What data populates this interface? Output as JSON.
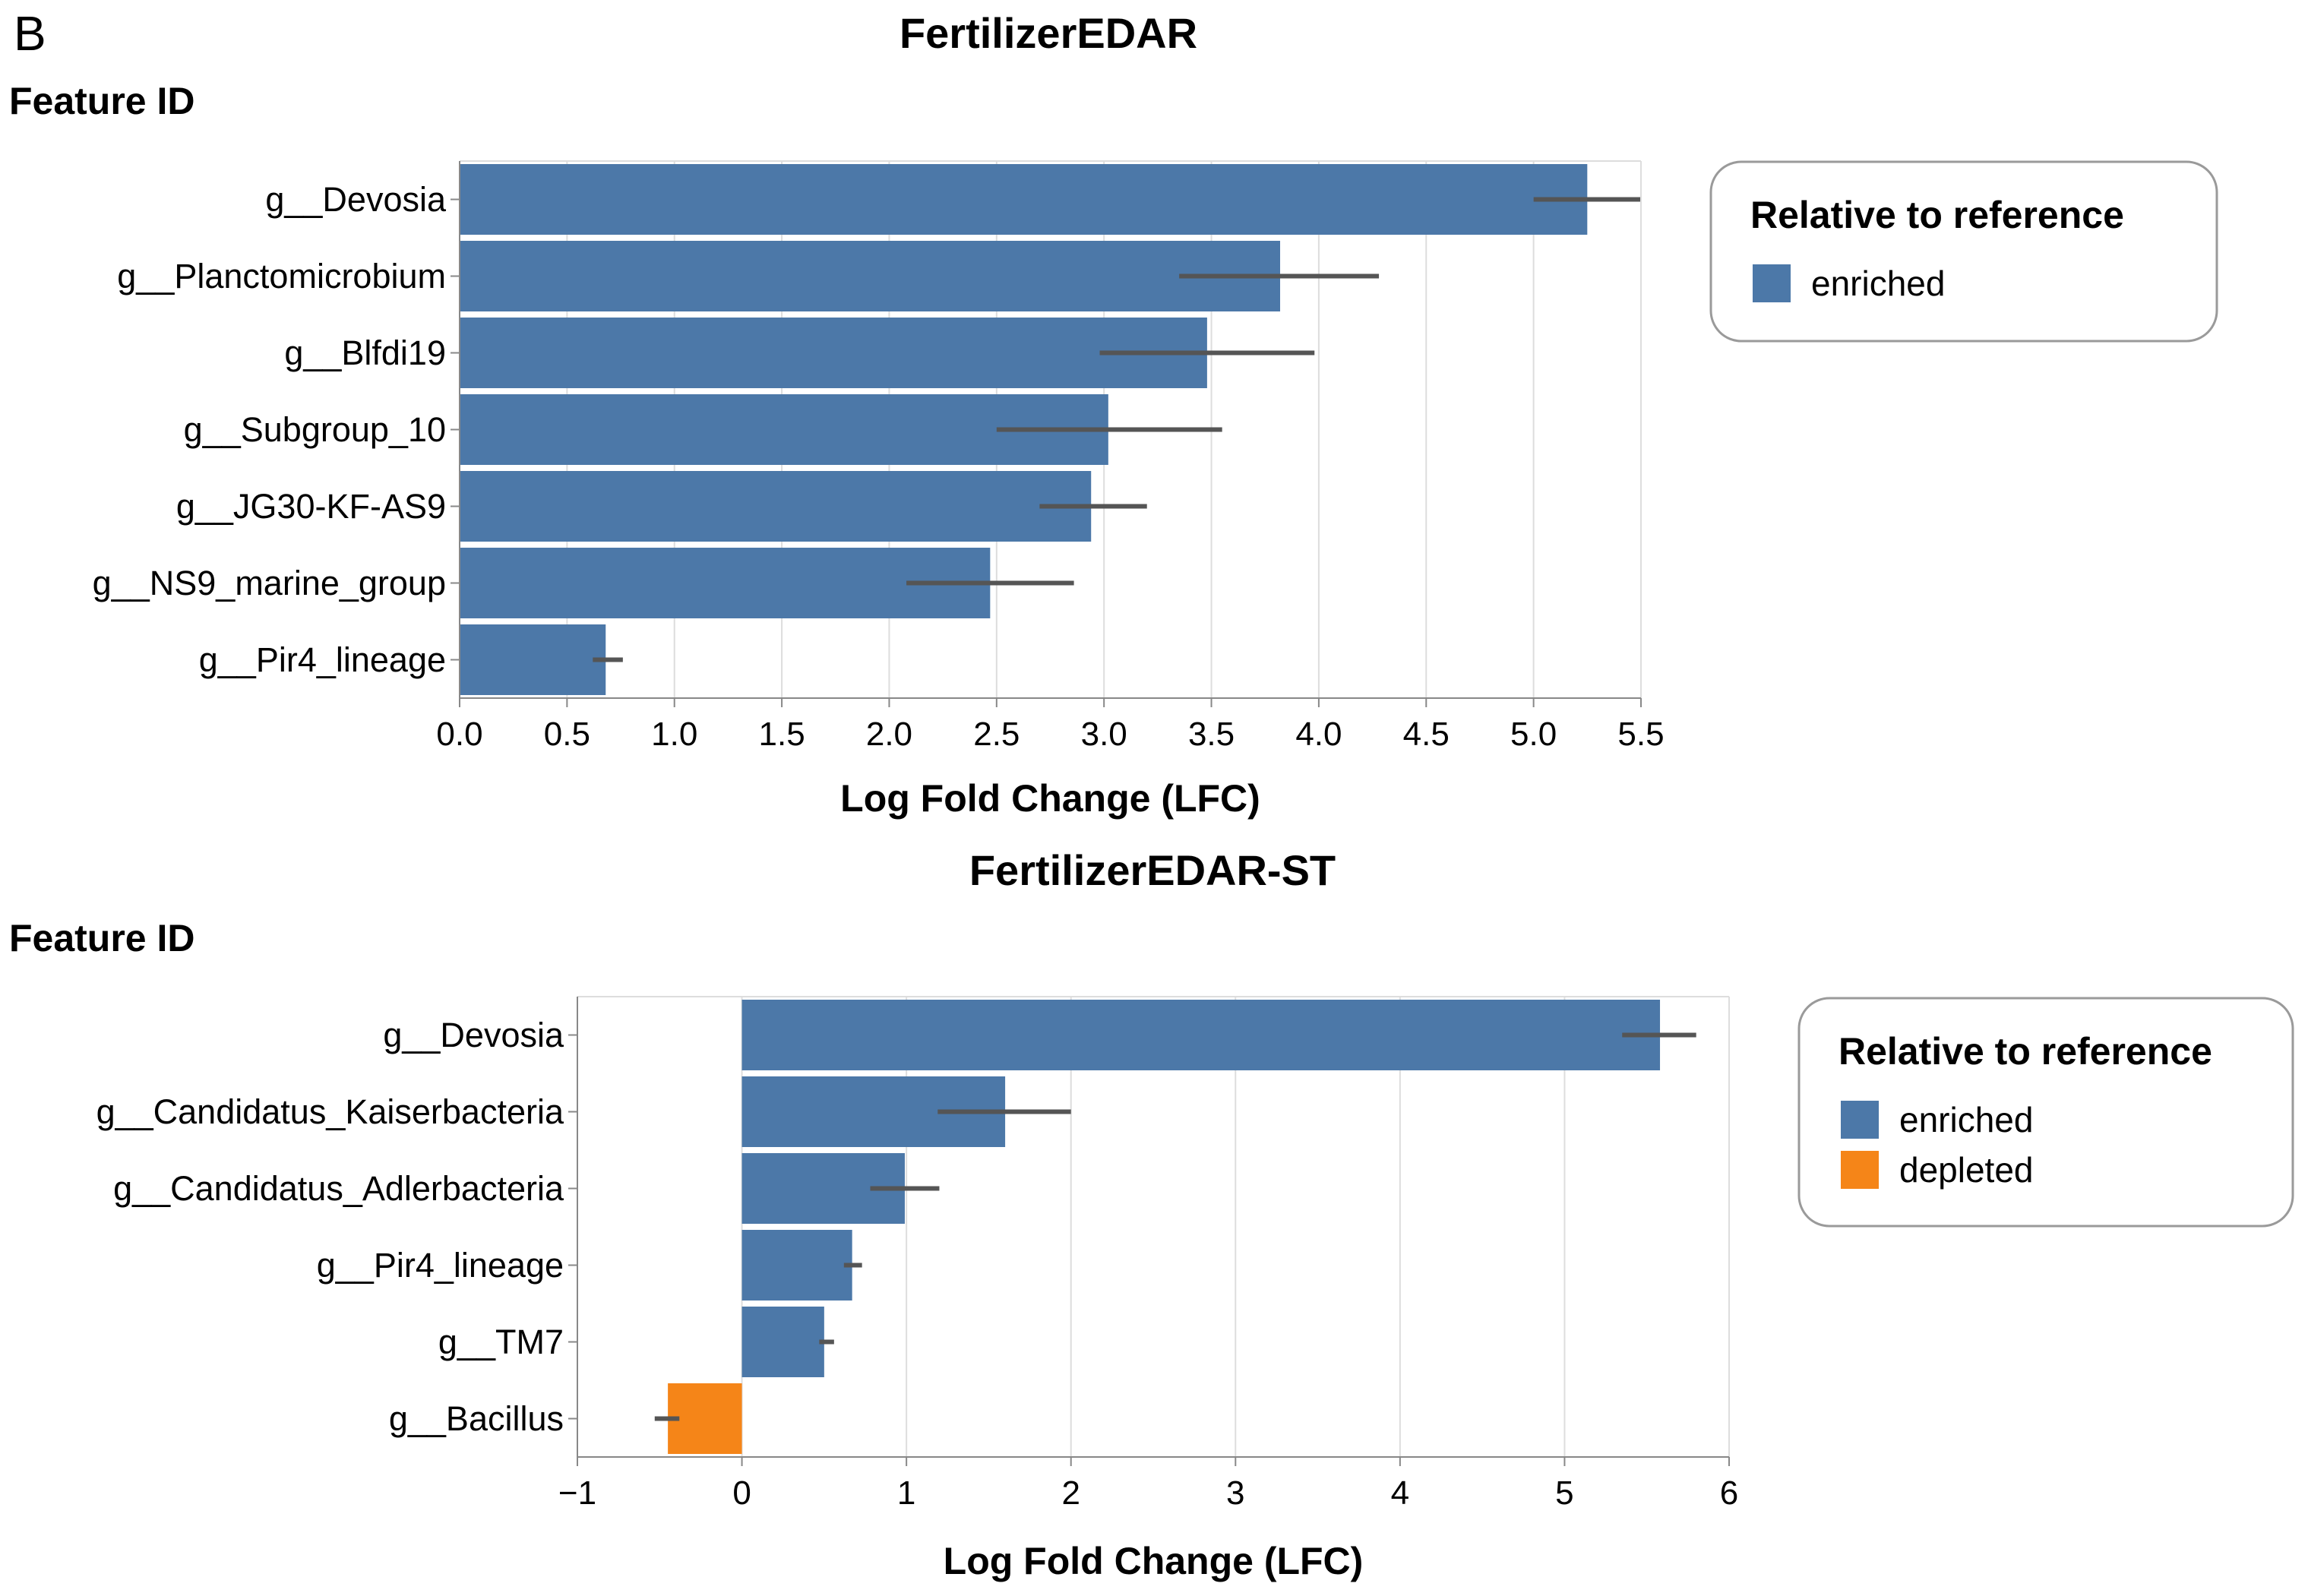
{
  "panel_label": "B",
  "chart_data": [
    {
      "type": "bar",
      "orientation": "horizontal",
      "title": "FertilizerEDAR",
      "ylabel": "Feature ID",
      "xlabel": "Log Fold Change (LFC)",
      "xlim": [
        0,
        5.5
      ],
      "ticks": [
        0,
        0.5,
        1,
        1.5,
        2,
        2.5,
        3,
        3.5,
        4,
        4.5,
        5,
        5.5
      ],
      "tick_labels": [
        "0.0",
        "0.5",
        "1.0",
        "1.5",
        "2.0",
        "2.5",
        "3.0",
        "3.5",
        "4.0",
        "4.5",
        "5.0",
        "5.5"
      ],
      "grid": true,
      "categories": [
        "g__Devosia",
        "g__Planctomicrobium",
        "g__Blfdi19",
        "g__Subgroup_10",
        "g__JG30-KF-AS9",
        "g__NS9_marine_group",
        "g__Pir4_lineage"
      ],
      "values": [
        5.25,
        3.82,
        3.48,
        3.02,
        2.94,
        2.47,
        0.68
      ],
      "error_low": [
        5.0,
        3.35,
        2.98,
        2.5,
        2.7,
        2.08,
        0.62
      ],
      "error_high": [
        5.5,
        4.28,
        3.98,
        3.55,
        3.2,
        2.86,
        0.76
      ],
      "direction": [
        "enriched",
        "enriched",
        "enriched",
        "enriched",
        "enriched",
        "enriched",
        "enriched"
      ],
      "legend": {
        "title": "Relative to reference",
        "position": "top-right",
        "entries": [
          {
            "label": "enriched",
            "color": "#4c78a8"
          }
        ]
      }
    },
    {
      "type": "bar",
      "orientation": "horizontal",
      "title": "FertilizerEDAR-ST",
      "ylabel": "Feature ID",
      "xlabel": "Log Fold Change (LFC)",
      "xlim": [
        -1,
        6
      ],
      "ticks": [
        -1,
        0,
        1,
        2,
        3,
        4,
        5,
        6
      ],
      "tick_labels": [
        "−1",
        "0",
        "1",
        "2",
        "3",
        "4",
        "5",
        "6"
      ],
      "grid": true,
      "categories": [
        "g__Devosia",
        "g__Candidatus_Kaiserbacteria",
        "g__Candidatus_Adlerbacteria",
        "g__Pir4_lineage",
        "g__TM7",
        "g__Bacillus"
      ],
      "values": [
        5.58,
        1.6,
        0.99,
        0.67,
        0.5,
        -0.45
      ],
      "error_low": [
        5.35,
        1.19,
        0.78,
        0.62,
        0.47,
        -0.53
      ],
      "error_high": [
        5.8,
        2.0,
        1.2,
        0.73,
        0.56,
        -0.38
      ],
      "direction": [
        "enriched",
        "enriched",
        "enriched",
        "enriched",
        "enriched",
        "depleted"
      ],
      "legend": {
        "title": "Relative to reference",
        "position": "top-right",
        "entries": [
          {
            "label": "enriched",
            "color": "#4c78a8"
          },
          {
            "label": "depleted",
            "color": "#f58518"
          }
        ]
      }
    }
  ],
  "colors": {
    "enriched": "#4c78a8",
    "depleted": "#f58518",
    "grid": "#dddddd",
    "axis": "#888888",
    "error_bar": "#555555"
  }
}
